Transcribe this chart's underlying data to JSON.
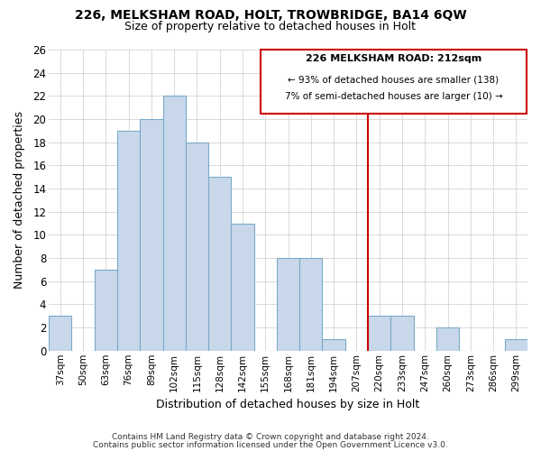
{
  "title": "226, MELKSHAM ROAD, HOLT, TROWBRIDGE, BA14 6QW",
  "subtitle": "Size of property relative to detached houses in Holt",
  "xlabel": "Distribution of detached houses by size in Holt",
  "ylabel": "Number of detached properties",
  "bar_color": "#c8d8ea",
  "bar_edge_color": "#7aaac8",
  "categories": [
    "37sqm",
    "50sqm",
    "63sqm",
    "76sqm",
    "89sqm",
    "102sqm",
    "115sqm",
    "128sqm",
    "142sqm",
    "155sqm",
    "168sqm",
    "181sqm",
    "194sqm",
    "207sqm",
    "220sqm",
    "233sqm",
    "247sqm",
    "260sqm",
    "273sqm",
    "286sqm",
    "299sqm"
  ],
  "values": [
    3,
    0,
    7,
    19,
    20,
    22,
    18,
    15,
    11,
    0,
    8,
    8,
    1,
    0,
    3,
    3,
    0,
    2,
    0,
    0,
    1
  ],
  "ylim": [
    0,
    26
  ],
  "yticks": [
    0,
    2,
    4,
    6,
    8,
    10,
    12,
    14,
    16,
    18,
    20,
    22,
    24,
    26
  ],
  "vline_x": 13.5,
  "vline_color": "#cc0000",
  "annotation_title": "226 MELKSHAM ROAD: 212sqm",
  "annotation_line1": "← 93% of detached houses are smaller (138)",
  "annotation_line2": "7% of semi-detached houses are larger (10) →",
  "annotation_box_color": "#ffffff",
  "annotation_box_edge": "#cc0000",
  "footer1": "Contains HM Land Registry data © Crown copyright and database right 2024.",
  "footer2": "Contains public sector information licensed under the Open Government Licence v3.0.",
  "grid_color": "#cccccc",
  "background_color": "#ffffff",
  "title_fontsize": 10,
  "subtitle_fontsize": 9
}
